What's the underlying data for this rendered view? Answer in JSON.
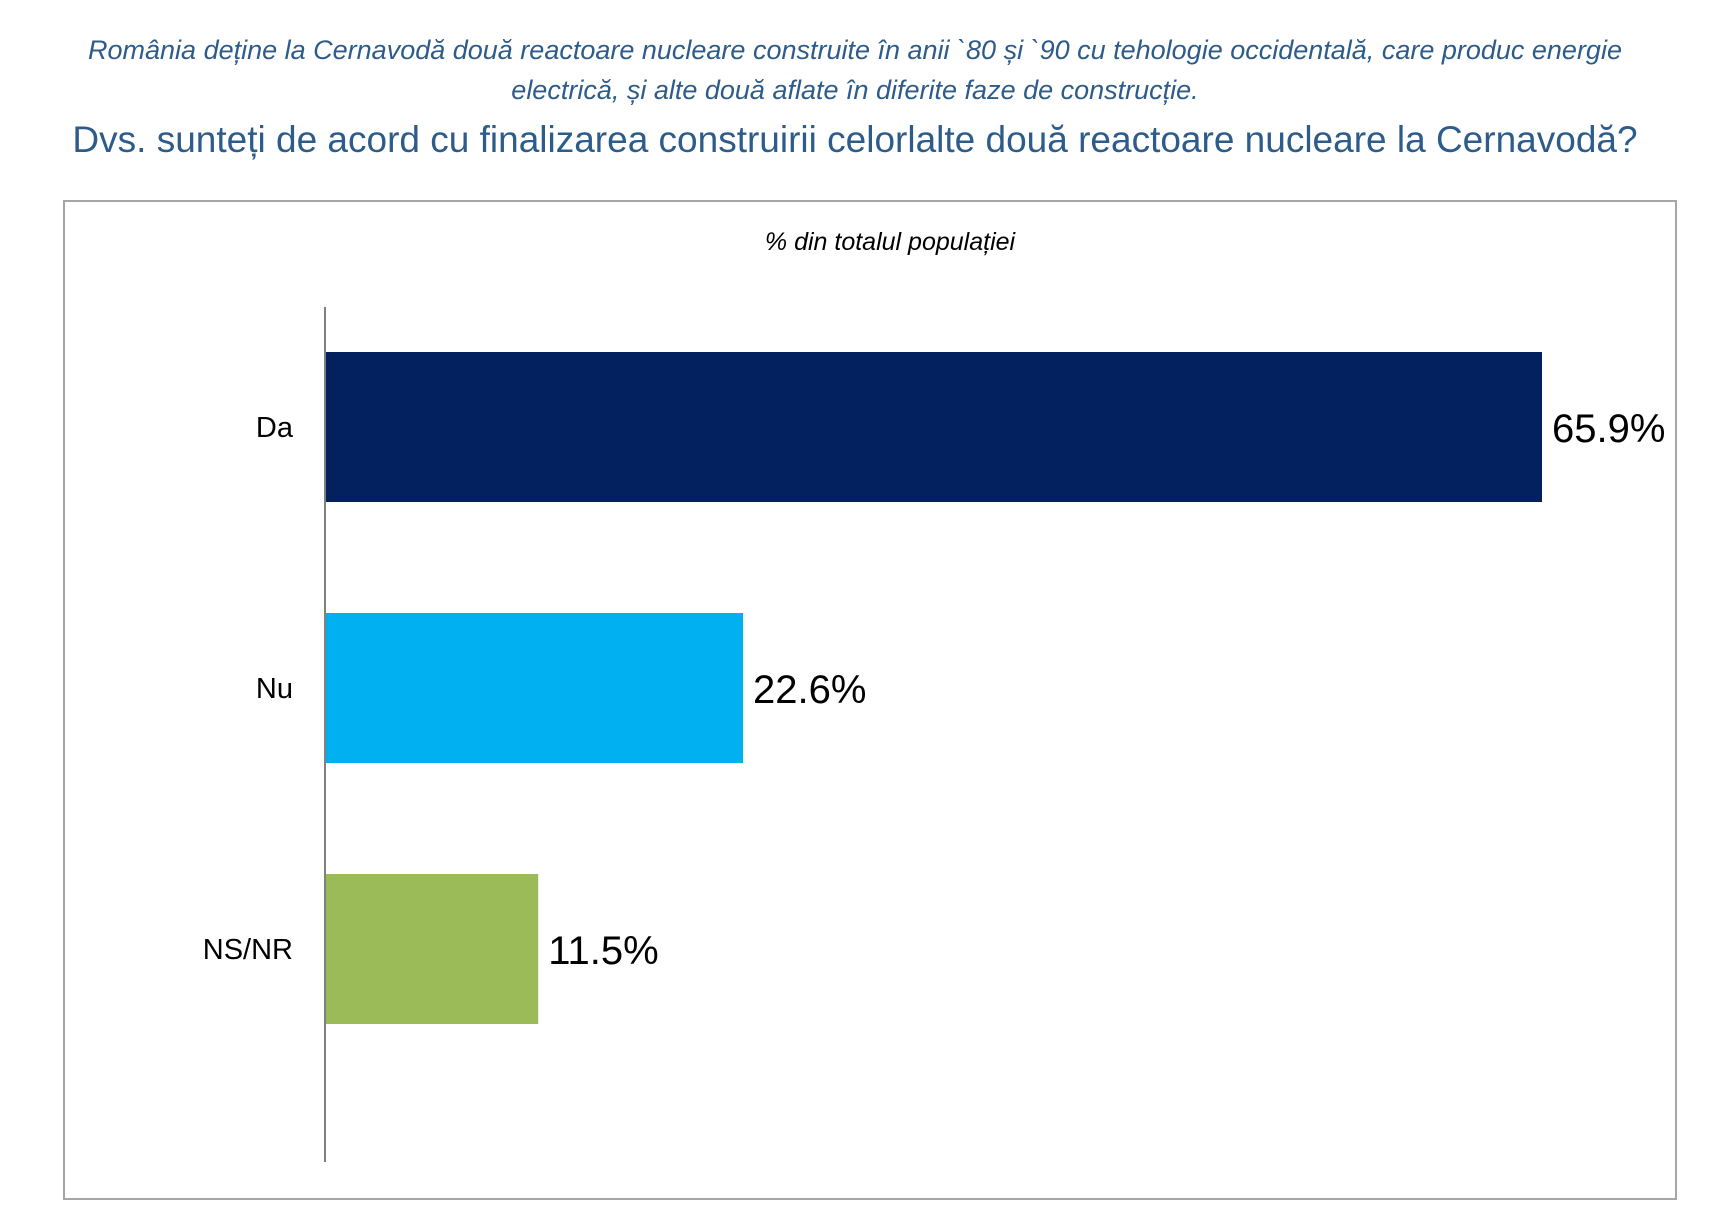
{
  "header": {
    "intro": "România deține la Cernavodă două reactoare nucleare construite în anii `80 și `90 cu tehologie occidentală, care produc energie electrică, și alte două aflate în diferite faze de construcție.",
    "question": "Dvs. sunteți de acord cu finalizarea construirii celorlalte două reactoare nucleare la Cernavodă?"
  },
  "chart_data": {
    "type": "bar",
    "orientation": "horizontal",
    "subtitle": "% din totalul populației",
    "categories": [
      "Da",
      "Nu",
      "NS/NR"
    ],
    "values": [
      65.9,
      22.6,
      11.5
    ],
    "value_labels": [
      "65.9%",
      "22.6%",
      "11.5%"
    ],
    "colors": [
      "#03215f",
      "#00b0f0",
      "#9bbb59"
    ],
    "xlim": [
      0,
      72
    ],
    "grid": false,
    "legend": "none"
  }
}
